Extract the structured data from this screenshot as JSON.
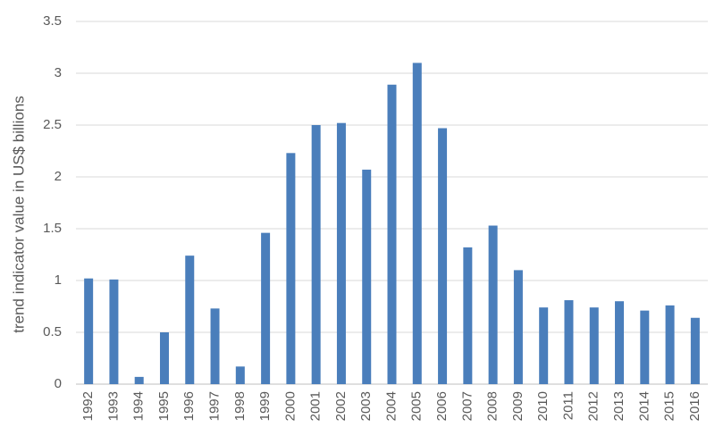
{
  "chart_data": {
    "type": "bar",
    "y_label": "trend indicator value in US$ billions",
    "categories": [
      "1992",
      "1993",
      "1994",
      "1995",
      "1996",
      "1997",
      "1998",
      "1999",
      "2000",
      "2001",
      "2002",
      "2003",
      "2004",
      "2005",
      "2006",
      "2007",
      "2008",
      "2009",
      "2010",
      "2011",
      "2012",
      "2013",
      "2014",
      "2015",
      "2016"
    ],
    "values": [
      1.02,
      1.01,
      0.07,
      0.5,
      1.24,
      0.73,
      0.17,
      1.46,
      2.23,
      2.5,
      2.52,
      2.07,
      2.89,
      3.1,
      2.47,
      1.32,
      1.53,
      1.1,
      0.74,
      0.81,
      0.74,
      0.8,
      0.71,
      0.76,
      0.64
    ],
    "color": "#4a7ebb",
    "ylim": [
      0,
      3.5
    ],
    "yticks": [
      0,
      0.5,
      1,
      1.5,
      2,
      2.5,
      3,
      3.5
    ],
    "grid": true
  }
}
